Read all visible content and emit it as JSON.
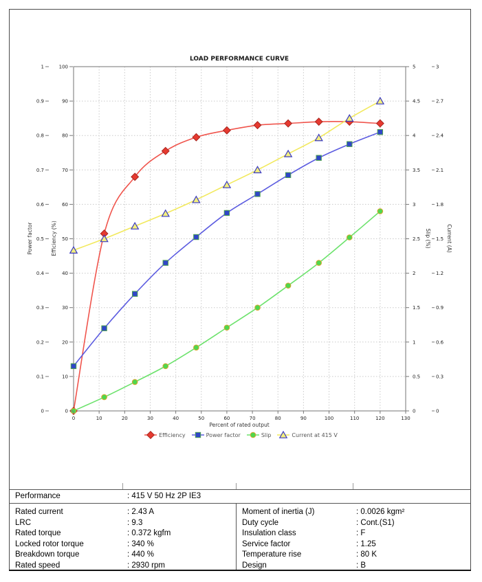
{
  "chart_data": {
    "type": "line",
    "title": "LOAD PERFORMANCE CURVE",
    "x_axis": {
      "label": "Percent of rated output",
      "max": 130,
      "ticks": [
        "0",
        "10",
        "20",
        "30",
        "40",
        "50",
        "60",
        "70",
        "80",
        "90",
        "100",
        "110",
        "120",
        "130"
      ]
    },
    "y_axes": [
      {
        "id": "power_factor",
        "label": "Power factor",
        "max": 1,
        "ticks": [
          "0",
          "0.1",
          "0.2",
          "0.3",
          "0.4",
          "0.5",
          "0.6",
          "0.7",
          "0.8",
          "0.9",
          "1"
        ]
      },
      {
        "id": "efficiency",
        "label": "Efficiency (%)",
        "max": 100,
        "ticks": [
          "0",
          "10",
          "20",
          "30",
          "40",
          "50",
          "60",
          "70",
          "80",
          "90",
          "100"
        ]
      },
      {
        "id": "slip",
        "label": "Slip (%)",
        "max": 5,
        "ticks": [
          "0",
          "0.5",
          "1",
          "1.5",
          "2",
          "2.5",
          "3",
          "3.5",
          "4",
          "4.5",
          "5"
        ]
      },
      {
        "id": "current",
        "label": "Current (A)",
        "max": 3,
        "ticks": [
          "0",
          "0.3",
          "0.6",
          "0.9",
          "1.2",
          "1.5",
          "1.8",
          "2.1",
          "2.4",
          "2.7",
          "3"
        ]
      }
    ],
    "x": [
      0,
      12,
      24,
      36,
      48,
      60,
      72,
      84,
      96,
      108,
      120
    ],
    "series": [
      {
        "name": "Efficiency",
        "axis": "efficiency",
        "marker": "diamond",
        "line_color": "#f0544c",
        "marker_fill": "#e63a30",
        "marker_stroke": "#a8241d",
        "values": [
          0,
          51.5,
          68,
          75.5,
          79.5,
          81.5,
          83,
          83.5,
          84,
          84,
          83.5
        ]
      },
      {
        "name": "Power factor",
        "axis": "power_factor",
        "marker": "square",
        "line_color": "#5b5be0",
        "marker_fill": "#3046c8",
        "marker_stroke": "#4fa24f",
        "values": [
          0.13,
          0.24,
          0.34,
          0.43,
          0.505,
          0.575,
          0.63,
          0.685,
          0.735,
          0.775,
          0.81
        ]
      },
      {
        "name": "Slip",
        "axis": "slip",
        "marker": "circle",
        "line_color": "#6ce26c",
        "marker_fill": "#4ed84e",
        "marker_stroke": "#d9a42e",
        "values": [
          0,
          0.2,
          0.42,
          0.65,
          0.92,
          1.21,
          1.5,
          1.82,
          2.15,
          2.52,
          2.9
        ]
      },
      {
        "name": "Current at 415 V",
        "axis": "current",
        "marker": "triangle",
        "line_color": "#f2e95c",
        "marker_fill": "#f3ef7d",
        "marker_stroke": "#3a3ac4",
        "values": [
          1.4,
          1.5,
          1.61,
          1.72,
          1.84,
          1.97,
          2.1,
          2.24,
          2.38,
          2.55,
          2.7
        ]
      }
    ],
    "grid": true,
    "legend_position": "bottom"
  },
  "spec_table": {
    "performance": {
      "label": "Performance",
      "value": ": 415 V 50 Hz 2P IE3"
    },
    "left_rows": [
      {
        "label": "Rated current",
        "value": ": 2.43 A"
      },
      {
        "label": "LRC",
        "value": ": 9.3"
      },
      {
        "label": "Rated torque",
        "value": ": 0.372 kgfm"
      },
      {
        "label": "Locked rotor torque",
        "value": ": 340 %"
      },
      {
        "label": "Breakdown torque",
        "value": ": 440 %"
      },
      {
        "label": "Rated speed",
        "value": ": 2930 rpm"
      }
    ],
    "right_rows": [
      {
        "label": "Moment of inertia (J)",
        "value": ": 0.0026 kgm²"
      },
      {
        "label": "Duty cycle",
        "value": ": Cont.(S1)"
      },
      {
        "label": "Insulation class",
        "value": ": F"
      },
      {
        "label": "Service factor",
        "value": ": 1.25"
      },
      {
        "label": "Temperature rise",
        "value": ": 80 K"
      },
      {
        "label": "Design",
        "value": ": B"
      }
    ]
  }
}
